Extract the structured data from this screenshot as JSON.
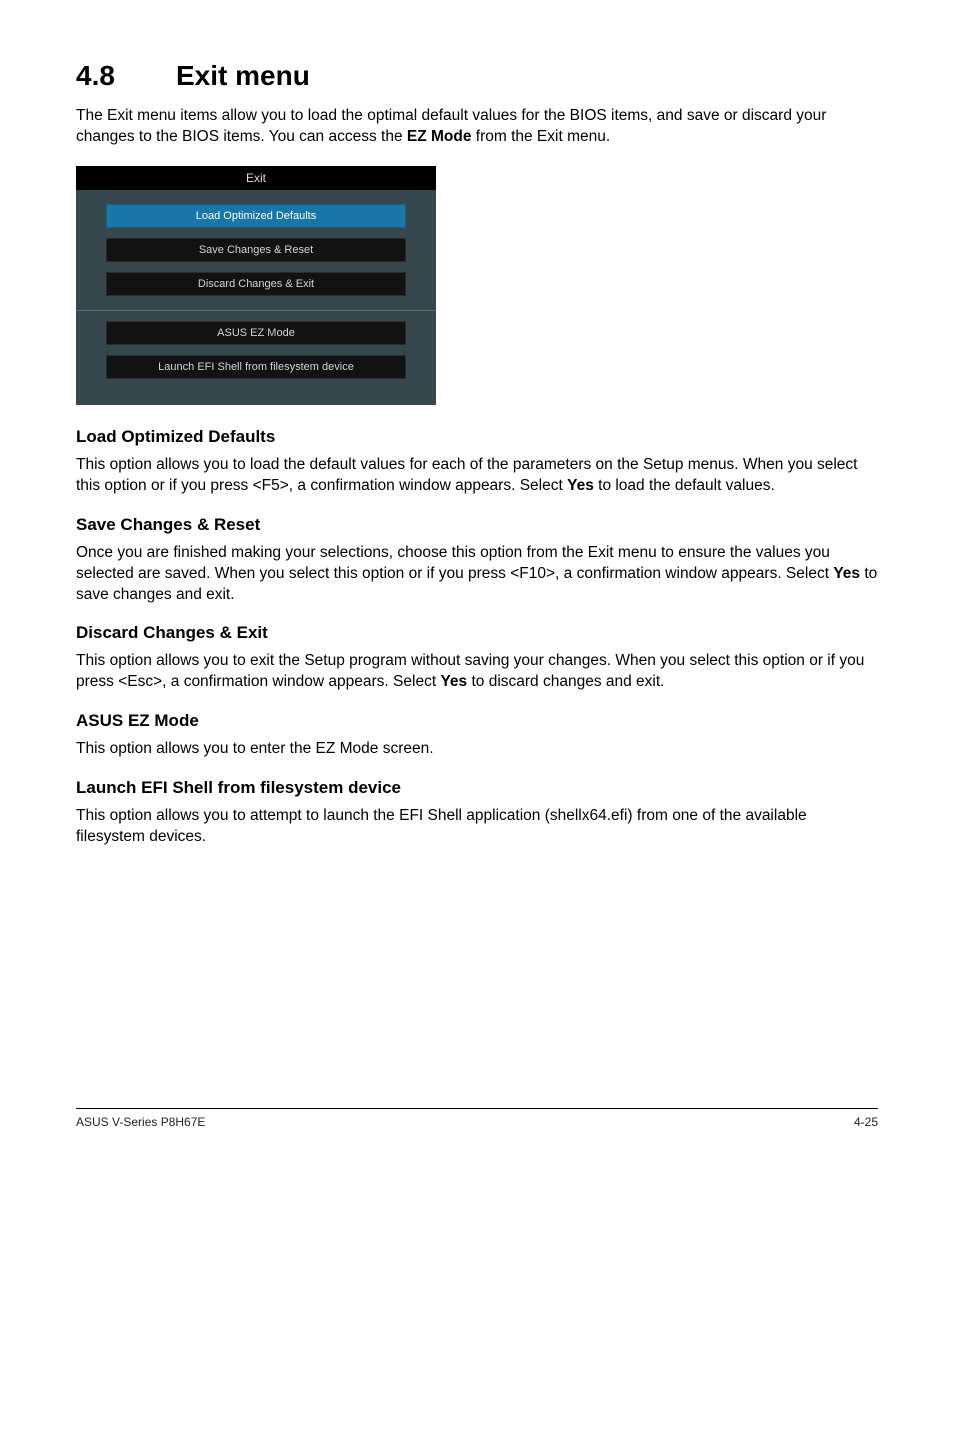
{
  "heading": {
    "number": "4.8",
    "title": "Exit menu"
  },
  "intro": "The Exit menu items allow you to load the optimal default values for the BIOS items, and save or discard your changes to the BIOS items. You can access the ",
  "intro_bold": "EZ Mode",
  "intro_tail": " from the Exit menu.",
  "bios": {
    "header": "Exit",
    "buttons_top": [
      {
        "label": "Load Optimized Defaults",
        "selected": true
      },
      {
        "label": "Save Changes & Reset",
        "selected": false
      },
      {
        "label": "Discard Changes & Exit",
        "selected": false
      }
    ],
    "buttons_bottom": [
      {
        "label": "ASUS EZ Mode",
        "selected": false
      },
      {
        "label": "Launch EFI Shell from filesystem device",
        "selected": false
      }
    ],
    "colors": {
      "panel_bg": "#36484d",
      "header_bg": "#000000",
      "btn_bg": "#121212",
      "btn_selected_bg": "#1976a8",
      "text": "#cfd4d6"
    }
  },
  "sections": [
    {
      "title": "Load Optimized Defaults",
      "body_pre": "This option allows you to load the default values for each of the parameters on the Setup menus. When you select this option or if you press <F5>, a confirmation window appears. Select ",
      "body_bold": "Yes",
      "body_post": " to load the default values."
    },
    {
      "title": "Save Changes & Reset",
      "body_pre": "Once you are finished making your selections, choose this option from the Exit menu to ensure the values you selected are saved. When you select this option or if you press <F10>, a confirmation window appears. Select ",
      "body_bold": "Yes",
      "body_post": " to save changes and exit."
    },
    {
      "title": "Discard Changes & Exit",
      "body_pre": "This option allows you to exit the Setup program without saving your changes. When you select this option or if you press <Esc>, a confirmation window appears. Select ",
      "body_bold": "Yes",
      "body_post": " to discard changes and exit."
    },
    {
      "title": "ASUS EZ Mode",
      "body_pre": "This option allows you to enter the EZ Mode screen.",
      "body_bold": "",
      "body_post": ""
    },
    {
      "title": "Launch EFI Shell from filesystem device",
      "body_pre": "This option allows you to attempt to launch the EFI Shell application (shellx64.efi) from one of the available filesystem devices.",
      "body_bold": "",
      "body_post": ""
    }
  ],
  "footer": {
    "left": "ASUS V-Series P8H67E",
    "right": "4-25"
  }
}
